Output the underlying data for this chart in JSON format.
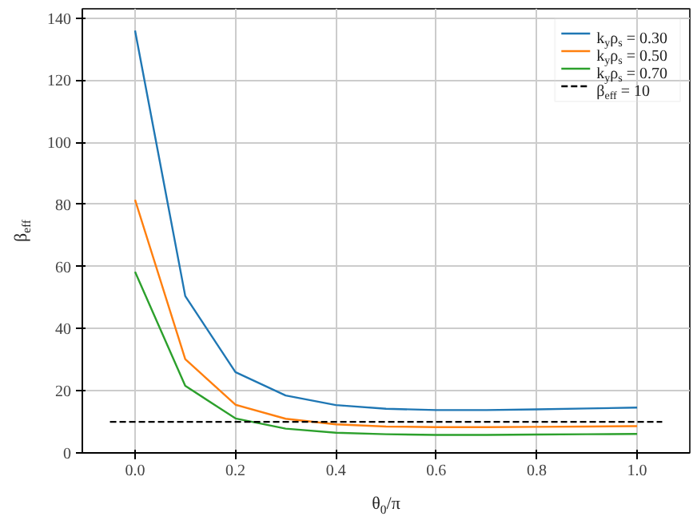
{
  "chart_data": {
    "type": "line",
    "xlabel": "θ$_{0}$/π",
    "ylabel": "β$_{eff}$",
    "x": [
      0.0,
      0.1,
      0.2,
      0.3,
      0.4,
      0.5,
      0.6,
      0.7,
      0.8,
      0.9,
      1.0
    ],
    "series": [
      {
        "name": "k$_{y}$ρ$_{s}$ = 0.30",
        "color": "#1f77b4",
        "values": [
          136,
          50.5,
          26,
          18.5,
          15.4,
          14.2,
          13.8,
          13.8,
          14.0,
          14.3,
          14.6
        ]
      },
      {
        "name": "k$_{y}$ρ$_{s}$ = 0.50",
        "color": "#ff7f0e",
        "values": [
          81.5,
          30.2,
          15.5,
          11,
          9.2,
          8.5,
          8.3,
          8.3,
          8.4,
          8.5,
          8.6
        ]
      },
      {
        "name": "k$_{y}$ρ$_{s}$ = 0.70",
        "color": "#2ca02c",
        "values": [
          58.3,
          21.6,
          11.1,
          7.8,
          6.5,
          6.0,
          5.8,
          5.8,
          5.9,
          6.0,
          6.1
        ]
      },
      {
        "name": "β$_{eff}$ = 10",
        "color": "#000000",
        "line_style": "dashed",
        "x": [
          -0.05,
          1.05
        ],
        "values": [
          10,
          10
        ]
      }
    ],
    "xlim": [
      -0.105,
      1.105
    ],
    "ylim": [
      0,
      143
    ],
    "xticks": [
      {
        "value": 0,
        "label": "0.0"
      },
      0.2,
      0.4,
      0.6,
      0.8,
      {
        "value": 1,
        "label": "1.0"
      }
    ],
    "yticks": [
      0,
      20,
      40,
      60,
      80,
      100,
      120,
      140
    ],
    "grid": true,
    "legend": "top right",
    "line_style": "solid"
  }
}
